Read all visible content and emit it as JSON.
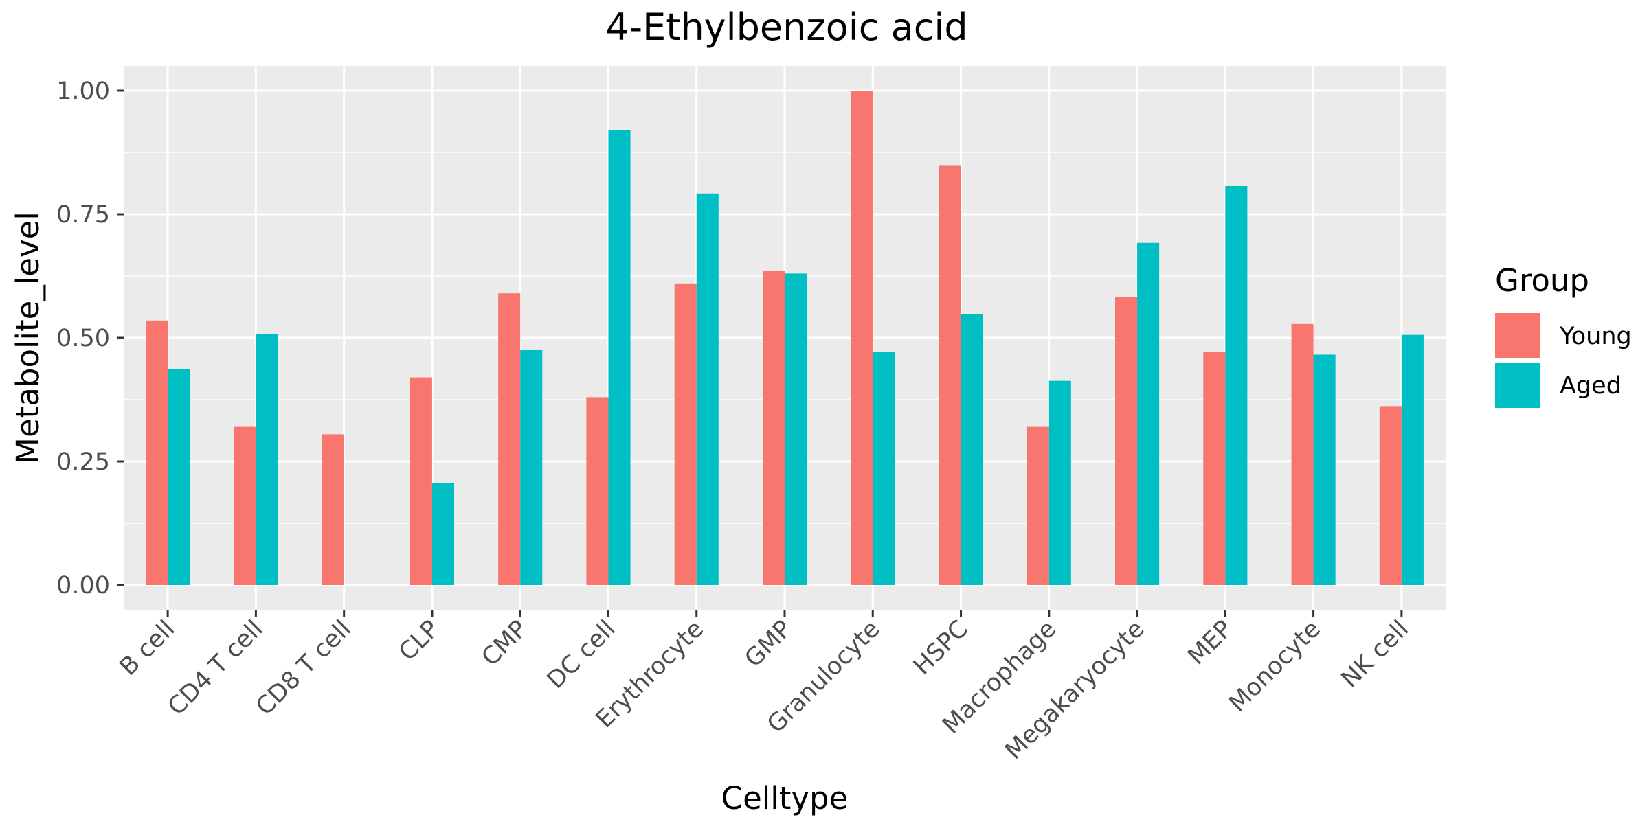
{
  "chart_data": {
    "type": "bar",
    "title": "4-Ethylbenzoic acid",
    "xlabel": "Celltype",
    "ylabel": "Metabolite_level",
    "ylim": [
      -0.05,
      1.05
    ],
    "yticks": [
      0.0,
      0.25,
      0.5,
      0.75,
      1.0
    ],
    "ytick_labels": [
      "0.00",
      "0.25",
      "0.50",
      "0.75",
      "1.00"
    ],
    "categories": [
      "B cell",
      "CD4 T cell",
      "CD8 T cell",
      "CLP",
      "CMP",
      "DC cell",
      "Erythrocyte",
      "GMP",
      "Granulocyte",
      "HSPC",
      "Macrophage",
      "Megakaryocyte",
      "MEP",
      "Monocyte",
      "NK cell"
    ],
    "series": [
      {
        "name": "Young",
        "color": "#F8766D",
        "values": [
          0.535,
          0.32,
          0.305,
          0.42,
          0.59,
          0.38,
          0.61,
          0.635,
          1.0,
          0.848,
          0.32,
          0.582,
          0.472,
          0.528,
          0.362
        ]
      },
      {
        "name": "Aged",
        "color": "#00BFC4",
        "values": [
          0.437,
          0.508,
          null,
          0.206,
          0.475,
          0.92,
          0.792,
          0.63,
          0.471,
          0.548,
          0.413,
          0.692,
          0.807,
          0.466,
          0.506
        ]
      }
    ],
    "legend": {
      "title": "Group",
      "position": "right"
    },
    "grid": true,
    "panel_background": "#EBEBEB"
  }
}
